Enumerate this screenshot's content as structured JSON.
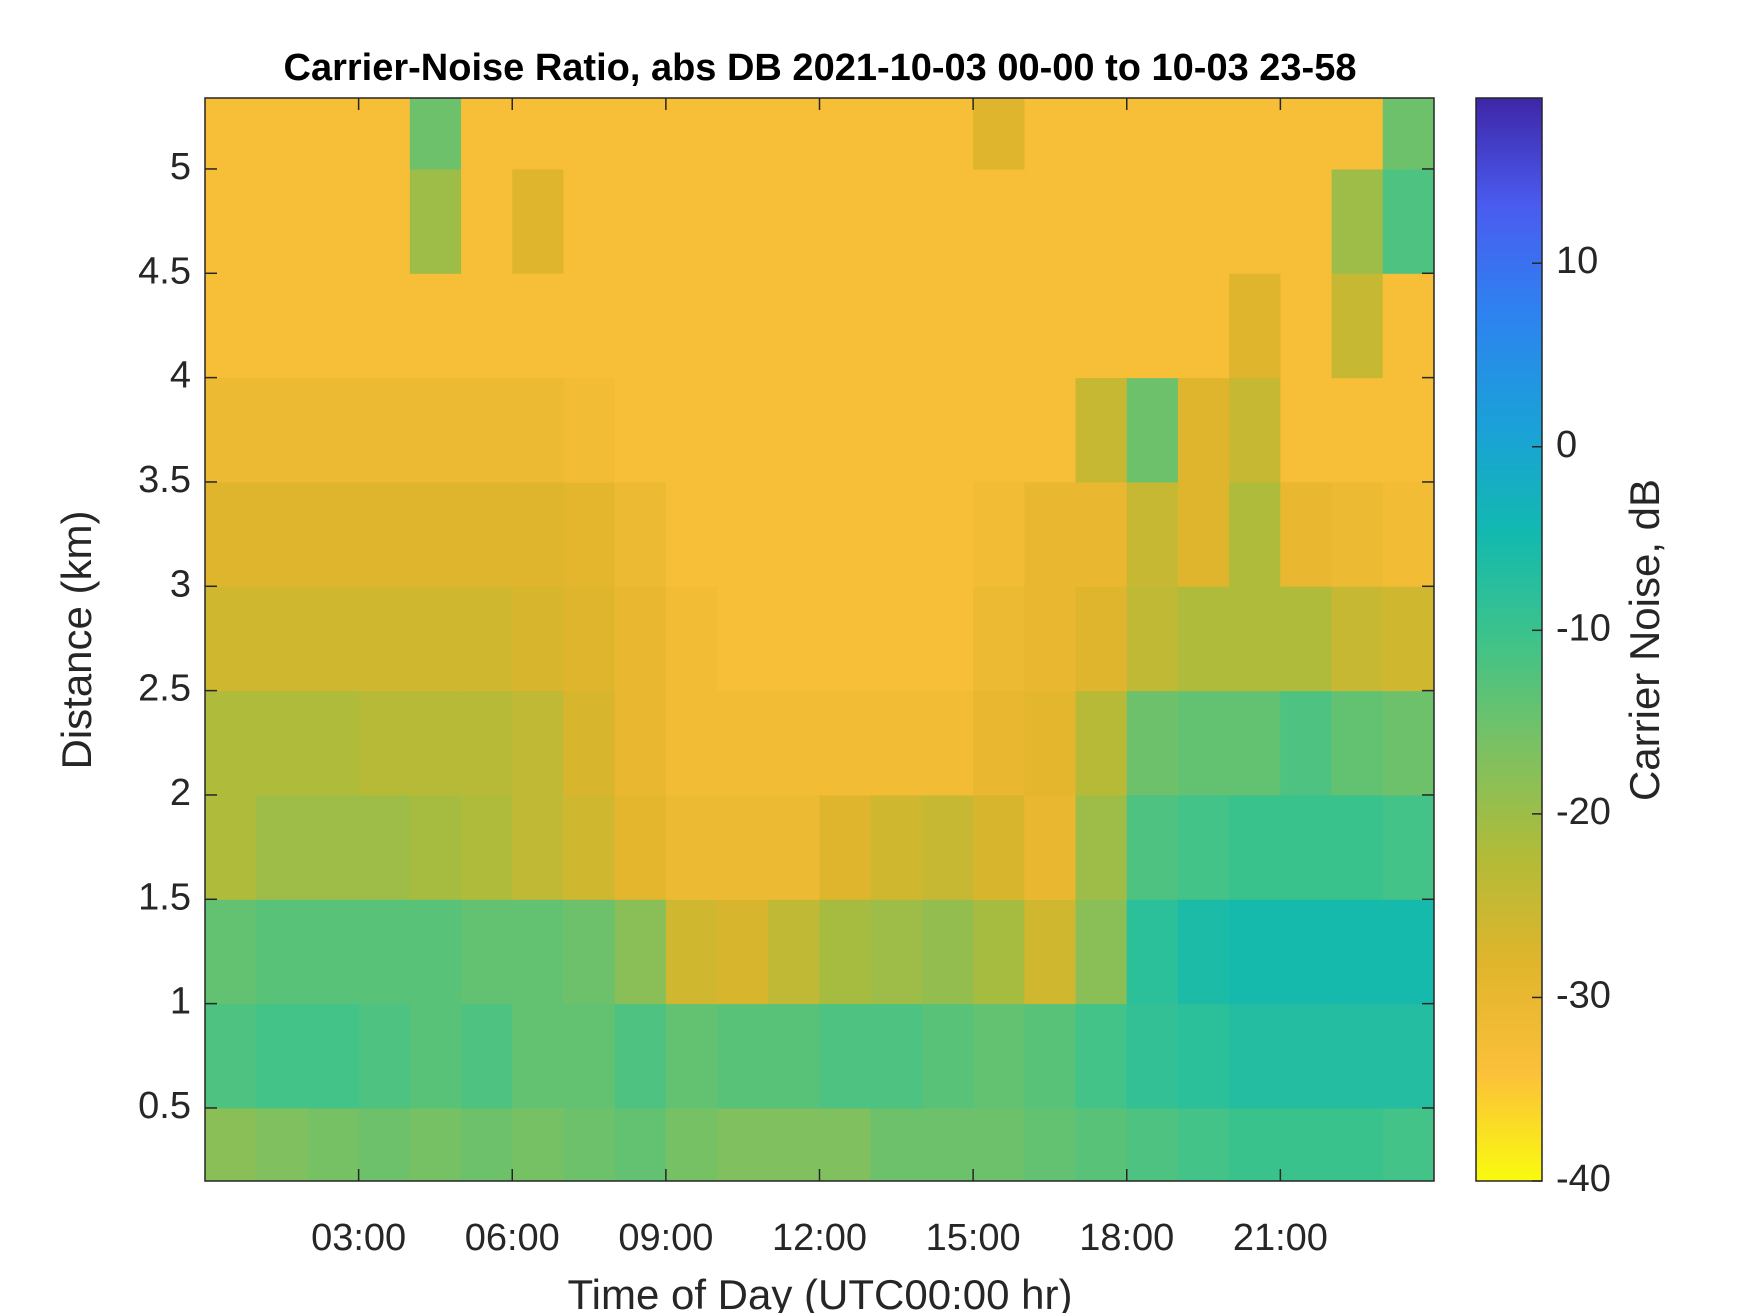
{
  "chart_data": {
    "type": "heatmap",
    "title": "Carrier-Noise Ratio, abs DB 2021-10-03 00-00 to 10-03 23-58",
    "xlabel": "Time of Day (UTC00:00 hr)",
    "ylabel": "Distance (km)",
    "colorbar_label": "Carrier Noise, dB",
    "xlim": [
      0,
      24
    ],
    "ylim": [
      0.15,
      5.34
    ],
    "clim": [
      -40,
      19
    ],
    "xticks": [
      {
        "value": 3,
        "label": "03:00"
      },
      {
        "value": 6,
        "label": "06:00"
      },
      {
        "value": 9,
        "label": "09:00"
      },
      {
        "value": 12,
        "label": "12:00"
      },
      {
        "value": 15,
        "label": "15:00"
      },
      {
        "value": 18,
        "label": "18:00"
      },
      {
        "value": 21,
        "label": "21:00"
      }
    ],
    "yticks": [
      0.5,
      1,
      1.5,
      2,
      2.5,
      3,
      3.5,
      4,
      4.5,
      5
    ],
    "cticks": [
      -40,
      -30,
      -20,
      -10,
      0,
      10
    ],
    "colormap": [
      "#f9fb0e",
      "#fcc03a",
      "#e0b52c",
      "#b2bb38",
      "#7bc162",
      "#3ec38a",
      "#12b9b0",
      "#1ba0d9",
      "#2d83f0",
      "#4a5cf0",
      "#3e26a8"
    ],
    "x_edges": [
      0,
      1,
      2,
      3,
      4,
      5,
      6,
      7,
      8,
      9,
      10,
      11,
      12,
      13,
      14,
      15,
      16,
      17,
      18,
      19,
      20,
      21,
      22,
      23,
      24
    ],
    "y_edges": [
      0.15,
      0.5,
      1.0,
      1.5,
      2.0,
      2.5,
      3.0,
      3.5,
      4.0,
      4.5,
      5.0,
      5.34
    ],
    "z": [
      [
        -18,
        -17,
        -16,
        -15,
        -16,
        -15,
        -16,
        -15,
        -14,
        -16,
        -17,
        -17,
        -17,
        -15,
        -15,
        -15,
        -14,
        -13,
        -12,
        -11,
        -10,
        -10,
        -10,
        -11
      ],
      [
        -12,
        -11,
        -11,
        -12,
        -13,
        -12,
        -14,
        -14,
        -12,
        -14,
        -13,
        -13,
        -12,
        -12,
        -13,
        -14,
        -13,
        -11,
        -9,
        -8,
        -7,
        -7,
        -7,
        -7
      ],
      [
        -14,
        -13,
        -13,
        -13,
        -13,
        -14,
        -14,
        -15,
        -18,
        -26,
        -27,
        -24,
        -21,
        -20,
        -19,
        -21,
        -26,
        -18,
        -8,
        -6,
        -5,
        -5,
        -5,
        -5
      ],
      [
        -22,
        -20,
        -20,
        -20,
        -21,
        -22,
        -24,
        -26,
        -29,
        -31,
        -31,
        -31,
        -28,
        -26,
        -25,
        -27,
        -30,
        -20,
        -12,
        -11,
        -10,
        -10,
        -10,
        -11
      ],
      [
        -22,
        -22,
        -22,
        -23,
        -23,
        -23,
        -24,
        -27,
        -30,
        -32,
        -32,
        -32,
        -32,
        -32,
        -32,
        -30,
        -29,
        -23,
        -15,
        -14,
        -14,
        -12,
        -14,
        -15
      ],
      [
        -26,
        -26,
        -26,
        -26,
        -26,
        -26,
        -27,
        -28,
        -30,
        -32,
        -33,
        -33,
        -33,
        -33,
        -33,
        -31,
        -30,
        -28,
        -24,
        -22,
        -22,
        -22,
        -25,
        -26
      ],
      [
        -28,
        -28,
        -28,
        -28,
        -28,
        -28,
        -28,
        -29,
        -31,
        -33,
        -33,
        -33,
        -33,
        -33,
        -33,
        -32,
        -30,
        -30,
        -25,
        -28,
        -22,
        -30,
        -31,
        -32
      ],
      [
        -31,
        -31,
        -31,
        -31,
        -31,
        -31,
        -31,
        -32,
        -33,
        -33,
        -33,
        -33,
        -33,
        -33,
        -33,
        -33,
        -33,
        -25,
        -15,
        -28,
        -25,
        -33,
        -33,
        -33
      ],
      [
        -33,
        -33,
        -33,
        -33,
        -33,
        -33,
        -33,
        -33,
        -33,
        -33,
        -33,
        -33,
        -33,
        -33,
        -33,
        -33,
        -33,
        -33,
        -33,
        -33,
        -28,
        -33,
        -25,
        -33
      ],
      [
        -33,
        -33,
        -33,
        -33,
        -20,
        -33,
        -28,
        -33,
        -33,
        -33,
        -33,
        -33,
        -33,
        -33,
        -33,
        -33,
        -33,
        -33,
        -33,
        -33,
        -33,
        -33,
        -20,
        -12
      ],
      [
        -33,
        -33,
        -33,
        -33,
        -15,
        -33,
        -33,
        -33,
        -33,
        -33,
        -33,
        -33,
        -33,
        -33,
        -33,
        -28,
        -33,
        -33,
        -33,
        -33,
        -33,
        -33,
        -33,
        -15
      ]
    ]
  }
}
